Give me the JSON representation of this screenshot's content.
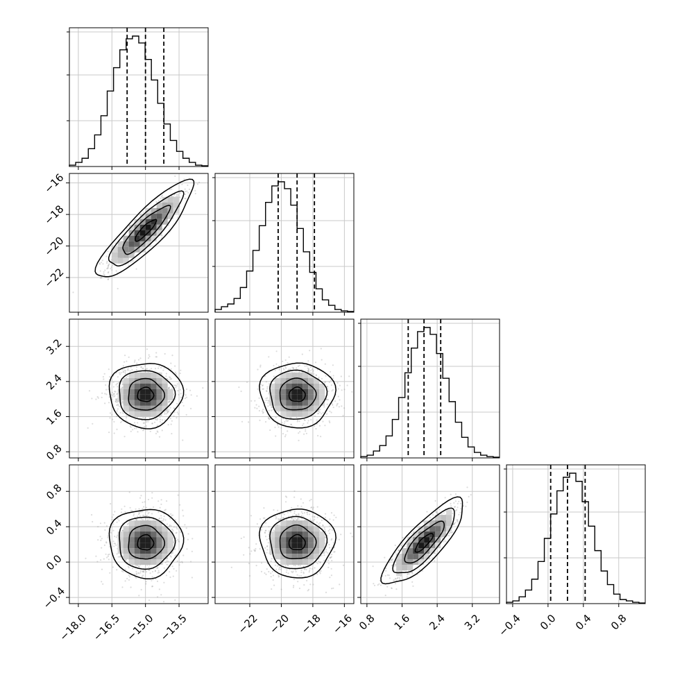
{
  "chart_data": {
    "type": "corner",
    "n_params": 4,
    "grid": true,
    "quantile_lines": "dashed",
    "params": [
      {
        "range": [
          -18.4,
          -12.2
        ],
        "ticks": [
          -18.0,
          -16.5,
          -15.0,
          -13.5
        ],
        "tick_labels": [
          "−18.0",
          "−16.5",
          "−15.0",
          "−13.5"
        ],
        "quantiles": [
          -15.82,
          -15.0,
          -14.18
        ],
        "hist": [
          0.01,
          0.03,
          0.06,
          0.13,
          0.23,
          0.37,
          0.55,
          0.72,
          0.85,
          0.93,
          0.95,
          0.9,
          0.78,
          0.63,
          0.46,
          0.31,
          0.19,
          0.11,
          0.06,
          0.03,
          0.01,
          0.005
        ]
      },
      {
        "range": [
          -24.2,
          -15.4
        ],
        "ticks": [
          -22,
          -20,
          -18,
          -16
        ],
        "tick_labels": [
          "−22",
          "−20",
          "−18",
          "−16"
        ],
        "quantiles": [
          -20.2,
          -19.0,
          -17.9
        ],
        "hist": [
          0.02,
          0.04,
          0.06,
          0.1,
          0.18,
          0.3,
          0.45,
          0.63,
          0.8,
          0.92,
          0.95,
          0.9,
          0.78,
          0.61,
          0.44,
          0.29,
          0.17,
          0.09,
          0.05,
          0.02,
          0.01,
          0.005
        ]
      },
      {
        "range": [
          0.66,
          3.82
        ],
        "ticks": [
          0.8,
          1.6,
          2.4,
          3.2
        ],
        "tick_labels": [
          "0.8",
          "1.6",
          "2.4",
          "3.2"
        ],
        "quantiles": [
          1.74,
          2.1,
          2.48
        ],
        "hist": [
          0.01,
          0.02,
          0.05,
          0.09,
          0.16,
          0.28,
          0.44,
          0.62,
          0.8,
          0.92,
          0.95,
          0.9,
          0.76,
          0.58,
          0.41,
          0.26,
          0.15,
          0.08,
          0.04,
          0.02,
          0.01,
          0.005
        ]
      },
      {
        "range": [
          -0.47,
          1.1
        ],
        "ticks": [
          -0.4,
          0.0,
          0.4,
          0.8
        ],
        "tick_labels": [
          "−0.4",
          "0.0",
          "0.4",
          "0.8"
        ],
        "quantiles": [
          0.03,
          0.22,
          0.42
        ],
        "hist": [
          0.01,
          0.02,
          0.05,
          0.1,
          0.18,
          0.31,
          0.48,
          0.66,
          0.83,
          0.93,
          0.96,
          0.9,
          0.75,
          0.57,
          0.39,
          0.24,
          0.14,
          0.07,
          0.03,
          0.02,
          0.01,
          0.005
        ]
      }
    ],
    "correlations": [
      [
        1.0,
        0.9,
        0.0,
        0.0
      ],
      [
        0.9,
        1.0,
        0.0,
        0.0
      ],
      [
        0.0,
        0.0,
        1.0,
        0.82
      ],
      [
        0.0,
        0.0,
        0.82,
        1.0
      ]
    ],
    "means": [
      -15.0,
      -19.0,
      2.1,
      0.22
    ],
    "sigmas": [
      0.8,
      1.15,
      0.36,
      0.19
    ]
  }
}
